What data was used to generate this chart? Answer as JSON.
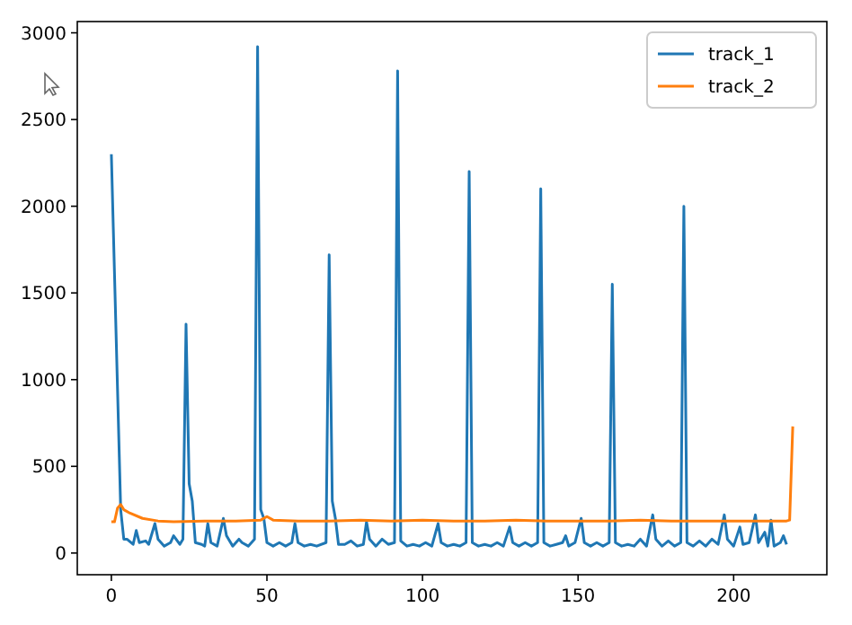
{
  "chart_data": {
    "type": "line",
    "xlim": [
      -10.95,
      229.95
    ],
    "ylim": [
      -125,
      3065
    ],
    "xticks": [
      0,
      50,
      100,
      150,
      200
    ],
    "yticks": [
      0,
      500,
      1000,
      1500,
      2000,
      2500,
      3000
    ],
    "legend": "top right",
    "grid": false,
    "series": [
      {
        "name": "track_1",
        "color": "#1f77b4",
        "x": [
          0,
          3,
          4,
          5,
          7,
          8,
          9,
          11,
          12,
          14,
          15,
          17,
          19,
          20,
          22,
          23,
          24,
          25,
          26,
          27,
          29,
          30,
          31,
          32,
          34,
          36,
          37,
          39,
          41,
          42,
          44,
          46,
          47,
          48,
          49,
          50,
          52,
          54,
          56,
          58,
          59,
          60,
          62,
          64,
          66,
          69,
          70,
          71,
          72,
          73,
          75,
          77,
          79,
          81,
          82,
          83,
          85,
          87,
          89,
          91,
          92,
          93,
          95,
          97,
          99,
          101,
          103,
          105,
          106,
          108,
          110,
          112,
          114,
          115,
          116,
          118,
          120,
          122,
          124,
          126,
          128,
          129,
          131,
          133,
          135,
          137,
          138,
          139,
          141,
          143,
          145,
          146,
          147,
          149,
          151,
          152,
          154,
          156,
          158,
          160,
          161,
          162,
          164,
          166,
          168,
          170,
          172,
          174,
          175,
          177,
          179,
          181,
          183,
          184,
          185,
          187,
          189,
          191,
          193,
          195,
          197,
          198,
          200,
          202,
          203,
          205,
          207,
          208,
          210,
          211,
          212,
          213,
          215,
          216,
          217
        ],
        "values": [
          2300,
          250,
          80,
          80,
          50,
          130,
          60,
          70,
          50,
          170,
          80,
          40,
          60,
          100,
          50,
          80,
          1320,
          400,
          300,
          60,
          50,
          40,
          170,
          60,
          40,
          200,
          100,
          40,
          80,
          60,
          40,
          80,
          2920,
          250,
          200,
          60,
          40,
          60,
          40,
          60,
          170,
          60,
          40,
          50,
          40,
          60,
          1720,
          300,
          200,
          50,
          50,
          70,
          40,
          50,
          180,
          80,
          40,
          80,
          50,
          60,
          2780,
          70,
          40,
          50,
          40,
          60,
          40,
          170,
          60,
          40,
          50,
          40,
          60,
          2200,
          60,
          40,
          50,
          40,
          60,
          40,
          150,
          60,
          40,
          60,
          40,
          60,
          2100,
          60,
          40,
          50,
          60,
          100,
          40,
          60,
          200,
          60,
          40,
          60,
          40,
          60,
          1550,
          60,
          40,
          50,
          40,
          80,
          40,
          220,
          80,
          40,
          70,
          40,
          60,
          2000,
          60,
          40,
          70,
          40,
          80,
          50,
          220,
          80,
          40,
          150,
          50,
          60,
          220,
          60,
          120,
          40,
          190,
          40,
          60,
          100,
          50
        ]
      },
      {
        "name": "track_2",
        "color": "#ff7f0e",
        "x": [
          0,
          1,
          2,
          3,
          4,
          6,
          10,
          15,
          20,
          30,
          40,
          48,
          50,
          52,
          60,
          70,
          80,
          90,
          100,
          110,
          120,
          130,
          140,
          150,
          160,
          170,
          180,
          190,
          200,
          210,
          217,
          218,
          219
        ],
        "values": [
          180,
          180,
          260,
          280,
          250,
          230,
          200,
          185,
          180,
          185,
          185,
          190,
          210,
          190,
          185,
          185,
          190,
          185,
          190,
          185,
          185,
          190,
          185,
          185,
          185,
          190,
          185,
          185,
          185,
          185,
          185,
          190,
          730
        ]
      }
    ]
  }
}
